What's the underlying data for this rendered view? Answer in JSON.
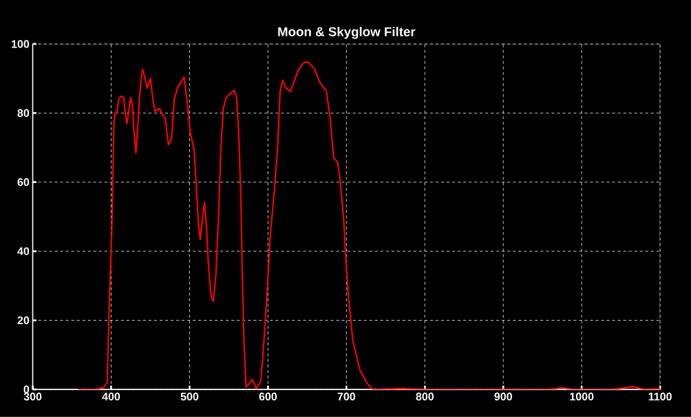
{
  "chart_data": {
    "type": "line",
    "title": "Moon & Skyglow Filter",
    "xlim": [
      300,
      1100
    ],
    "ylim": [
      0,
      100
    ],
    "xticks": [
      300,
      400,
      500,
      600,
      700,
      800,
      900,
      1000,
      1100
    ],
    "yticks": [
      0,
      20,
      40,
      60,
      80,
      100
    ],
    "grid": true,
    "line_style": "solid",
    "marker": "none",
    "series": [
      {
        "color": "#ff0000",
        "x": [
          358,
          370,
          380,
          390,
          395,
          397,
          400.7,
          403.6,
          404.8,
          407,
          410,
          413,
          416,
          418,
          420,
          422.5,
          424.8,
          427,
          429,
          431.6,
          433.6,
          436,
          438,
          440,
          443,
          446,
          450,
          452.8,
          455.7,
          461.6,
          466,
          469,
          473,
          477,
          480.7,
          485,
          493,
          497,
          501,
          505.7,
          508.9,
          511.4,
          513.6,
          516.8,
          519,
          521.5,
          524,
          527.2,
          530.3,
          533.5,
          536.7,
          539.8,
          542.9,
          546.7,
          551.5,
          556.9,
          560,
          563.1,
          565.7,
          567.2,
          569.4,
          572,
          575.8,
          579.8,
          585.2,
          590.9,
          594.7,
          598.8,
          602.9,
          608.2,
          612.3,
          615.5,
          618.7,
          622.4,
          628.7,
          638.2,
          645.2,
          650.8,
          658.7,
          666.5,
          674.4,
          679.2,
          683.9,
          688.6,
          691.8,
          696.5,
          699.6,
          702.8,
          708.2,
          717,
          726.5,
          732.4,
          740,
          770,
          800,
          900,
          960,
          975,
          990,
          1040,
          1065,
          1080,
          1100
        ],
        "values": [
          0,
          0,
          0,
          0.5,
          2,
          20,
          45,
          77.5,
          80,
          80,
          84.2,
          84.9,
          84.5,
          80,
          76.9,
          80.5,
          84.5,
          82.4,
          75,
          68.4,
          75,
          84.2,
          89,
          92.7,
          90.3,
          87.2,
          90,
          84.8,
          80.5,
          81.3,
          79.3,
          78.5,
          70.8,
          72.6,
          84.2,
          87.5,
          90.4,
          83,
          74.1,
          69.6,
          57.8,
          48,
          43.4,
          50,
          54.2,
          47.3,
          36.3,
          27.2,
          25.5,
          33,
          48.7,
          68.9,
          81.2,
          84.5,
          85.5,
          86.6,
          84.5,
          72.1,
          52.6,
          33,
          13.5,
          0.7,
          1.6,
          2.9,
          0.3,
          2.4,
          13.5,
          27.8,
          44.7,
          57.8,
          70.1,
          86.4,
          89.5,
          87.4,
          86.2,
          92.3,
          94.5,
          94.8,
          93,
          88.7,
          86.4,
          78.6,
          66.9,
          65.9,
          61,
          49.3,
          36.3,
          26.5,
          14.1,
          5.7,
          1.7,
          0.2,
          0,
          0.3,
          0,
          0,
          0,
          0.5,
          0,
          0,
          0.8,
          0,
          0.2
        ]
      }
    ]
  }
}
